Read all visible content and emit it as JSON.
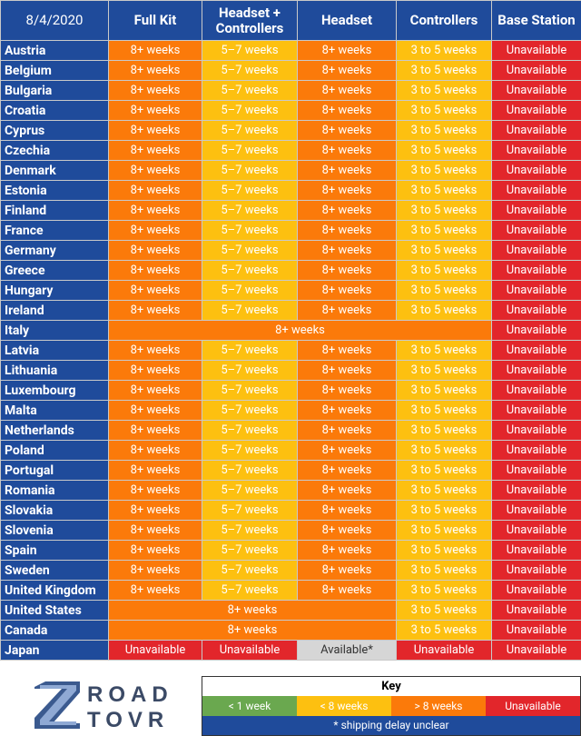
{
  "palette": {
    "blue": {
      "fill": "#1f4b9b",
      "ink": "#ffffff"
    },
    "orange": {
      "fill": "#fb7a0a",
      "ink": "#ffffff"
    },
    "yellow": {
      "fill": "#fdc010",
      "ink": "#ffffff"
    },
    "red": {
      "fill": "#e2262b",
      "ink": "#ffffff"
    },
    "grey": {
      "fill": "#d6d6d6",
      "ink": "#333333"
    },
    "green": {
      "fill": "#6aa84f",
      "ink": "#ffffff"
    }
  },
  "table": {
    "headers": [
      "8/4/2020",
      "Full Kit",
      "Headset + Controllers",
      "Headset",
      "Controllers",
      "Base Station"
    ],
    "rows": [
      {
        "country": "Austria",
        "cells": [
          {
            "text": "8+ weeks",
            "tone": "orange"
          },
          {
            "text": "5–7 weeks",
            "tone": "yellow"
          },
          {
            "text": "8+ weeks",
            "tone": "orange"
          },
          {
            "text": "3 to 5 weeks",
            "tone": "yellow"
          },
          {
            "text": "Unavailable",
            "tone": "red"
          }
        ]
      },
      {
        "country": "Belgium",
        "cells": [
          {
            "text": "8+ weeks",
            "tone": "orange"
          },
          {
            "text": "5–7 weeks",
            "tone": "yellow"
          },
          {
            "text": "8+ weeks",
            "tone": "orange"
          },
          {
            "text": "3 to 5 weeks",
            "tone": "yellow"
          },
          {
            "text": "Unavailable",
            "tone": "red"
          }
        ]
      },
      {
        "country": "Bulgaria",
        "cells": [
          {
            "text": "8+ weeks",
            "tone": "orange"
          },
          {
            "text": "5–7 weeks",
            "tone": "yellow"
          },
          {
            "text": "8+ weeks",
            "tone": "orange"
          },
          {
            "text": "3 to 5 weeks",
            "tone": "yellow"
          },
          {
            "text": "Unavailable",
            "tone": "red"
          }
        ]
      },
      {
        "country": "Croatia",
        "cells": [
          {
            "text": "8+ weeks",
            "tone": "orange"
          },
          {
            "text": "5–7 weeks",
            "tone": "yellow"
          },
          {
            "text": "8+ weeks",
            "tone": "orange"
          },
          {
            "text": "3 to 5 weeks",
            "tone": "yellow"
          },
          {
            "text": "Unavailable",
            "tone": "red"
          }
        ]
      },
      {
        "country": "Cyprus",
        "cells": [
          {
            "text": "8+ weeks",
            "tone": "orange"
          },
          {
            "text": "5–7 weeks",
            "tone": "yellow"
          },
          {
            "text": "8+ weeks",
            "tone": "orange"
          },
          {
            "text": "3 to 5 weeks",
            "tone": "yellow"
          },
          {
            "text": "Unavailable",
            "tone": "red"
          }
        ]
      },
      {
        "country": "Czechia",
        "cells": [
          {
            "text": "8+ weeks",
            "tone": "orange"
          },
          {
            "text": "5–7 weeks",
            "tone": "yellow"
          },
          {
            "text": "8+ weeks",
            "tone": "orange"
          },
          {
            "text": "3 to 5 weeks",
            "tone": "yellow"
          },
          {
            "text": "Unavailable",
            "tone": "red"
          }
        ]
      },
      {
        "country": "Denmark",
        "cells": [
          {
            "text": "8+ weeks",
            "tone": "orange"
          },
          {
            "text": "5–7 weeks",
            "tone": "yellow"
          },
          {
            "text": "8+ weeks",
            "tone": "orange"
          },
          {
            "text": "3 to 5 weeks",
            "tone": "yellow"
          },
          {
            "text": "Unavailable",
            "tone": "red"
          }
        ]
      },
      {
        "country": "Estonia",
        "cells": [
          {
            "text": "8+ weeks",
            "tone": "orange"
          },
          {
            "text": "5–7 weeks",
            "tone": "yellow"
          },
          {
            "text": "8+ weeks",
            "tone": "orange"
          },
          {
            "text": "3 to 5 weeks",
            "tone": "yellow"
          },
          {
            "text": "Unavailable",
            "tone": "red"
          }
        ]
      },
      {
        "country": "Finland",
        "cells": [
          {
            "text": "8+ weeks",
            "tone": "orange"
          },
          {
            "text": "5–7 weeks",
            "tone": "yellow"
          },
          {
            "text": "8+ weeks",
            "tone": "orange"
          },
          {
            "text": "3 to 5 weeks",
            "tone": "yellow"
          },
          {
            "text": "Unavailable",
            "tone": "red"
          }
        ]
      },
      {
        "country": "France",
        "cells": [
          {
            "text": "8+ weeks",
            "tone": "orange"
          },
          {
            "text": "5–7 weeks",
            "tone": "yellow"
          },
          {
            "text": "8+ weeks",
            "tone": "orange"
          },
          {
            "text": "3 to 5 weeks",
            "tone": "yellow"
          },
          {
            "text": "Unavailable",
            "tone": "red"
          }
        ]
      },
      {
        "country": "Germany",
        "cells": [
          {
            "text": "8+ weeks",
            "tone": "orange"
          },
          {
            "text": "5–7 weeks",
            "tone": "yellow"
          },
          {
            "text": "8+ weeks",
            "tone": "orange"
          },
          {
            "text": "3 to 5 weeks",
            "tone": "yellow"
          },
          {
            "text": "Unavailable",
            "tone": "red"
          }
        ]
      },
      {
        "country": "Greece",
        "cells": [
          {
            "text": "8+ weeks",
            "tone": "orange"
          },
          {
            "text": "5–7 weeks",
            "tone": "yellow"
          },
          {
            "text": "8+ weeks",
            "tone": "orange"
          },
          {
            "text": "3 to 5 weeks",
            "tone": "yellow"
          },
          {
            "text": "Unavailable",
            "tone": "red"
          }
        ]
      },
      {
        "country": "Hungary",
        "cells": [
          {
            "text": "8+ weeks",
            "tone": "orange"
          },
          {
            "text": "5–7 weeks",
            "tone": "yellow"
          },
          {
            "text": "8+ weeks",
            "tone": "orange"
          },
          {
            "text": "3 to 5 weeks",
            "tone": "yellow"
          },
          {
            "text": "Unavailable",
            "tone": "red"
          }
        ]
      },
      {
        "country": "Ireland",
        "cells": [
          {
            "text": "8+ weeks",
            "tone": "orange"
          },
          {
            "text": "5–7 weeks",
            "tone": "yellow"
          },
          {
            "text": "8+ weeks",
            "tone": "orange"
          },
          {
            "text": "3 to 5 weeks",
            "tone": "yellow"
          },
          {
            "text": "Unavailable",
            "tone": "red"
          }
        ]
      },
      {
        "country": "Italy",
        "cells": [
          {
            "text": "8+ weeks",
            "tone": "orange",
            "colspan": 4
          },
          {
            "text": "Unavailable",
            "tone": "red"
          }
        ]
      },
      {
        "country": "Latvia",
        "cells": [
          {
            "text": "8+ weeks",
            "tone": "orange"
          },
          {
            "text": "5–7 weeks",
            "tone": "yellow"
          },
          {
            "text": "8+ weeks",
            "tone": "orange"
          },
          {
            "text": "3 to 5 weeks",
            "tone": "yellow"
          },
          {
            "text": "Unavailable",
            "tone": "red"
          }
        ]
      },
      {
        "country": "Lithuania",
        "cells": [
          {
            "text": "8+ weeks",
            "tone": "orange"
          },
          {
            "text": "5–7 weeks",
            "tone": "yellow"
          },
          {
            "text": "8+ weeks",
            "tone": "orange"
          },
          {
            "text": "3 to 5 weeks",
            "tone": "yellow"
          },
          {
            "text": "Unavailable",
            "tone": "red"
          }
        ]
      },
      {
        "country": "Luxembourg",
        "cells": [
          {
            "text": "8+ weeks",
            "tone": "orange"
          },
          {
            "text": "5–7 weeks",
            "tone": "yellow"
          },
          {
            "text": "8+ weeks",
            "tone": "orange"
          },
          {
            "text": "3 to 5 weeks",
            "tone": "yellow"
          },
          {
            "text": "Unavailable",
            "tone": "red"
          }
        ]
      },
      {
        "country": "Malta",
        "cells": [
          {
            "text": "8+ weeks",
            "tone": "orange"
          },
          {
            "text": "5–7 weeks",
            "tone": "yellow"
          },
          {
            "text": "8+ weeks",
            "tone": "orange"
          },
          {
            "text": "3 to 5 weeks",
            "tone": "yellow"
          },
          {
            "text": "Unavailable",
            "tone": "red"
          }
        ]
      },
      {
        "country": "Netherlands",
        "cells": [
          {
            "text": "8+ weeks",
            "tone": "orange"
          },
          {
            "text": "5–7 weeks",
            "tone": "yellow"
          },
          {
            "text": "8+ weeks",
            "tone": "orange"
          },
          {
            "text": "3 to 5 weeks",
            "tone": "yellow"
          },
          {
            "text": "Unavailable",
            "tone": "red"
          }
        ]
      },
      {
        "country": "Poland",
        "cells": [
          {
            "text": "8+ weeks",
            "tone": "orange"
          },
          {
            "text": "5–7 weeks",
            "tone": "yellow"
          },
          {
            "text": "8+ weeks",
            "tone": "orange"
          },
          {
            "text": "3 to 5 weeks",
            "tone": "yellow"
          },
          {
            "text": "Unavailable",
            "tone": "red"
          }
        ]
      },
      {
        "country": "Portugal",
        "cells": [
          {
            "text": "8+ weeks",
            "tone": "orange"
          },
          {
            "text": "5–7 weeks",
            "tone": "yellow"
          },
          {
            "text": "8+ weeks",
            "tone": "orange"
          },
          {
            "text": "3 to 5 weeks",
            "tone": "yellow"
          },
          {
            "text": "Unavailable",
            "tone": "red"
          }
        ]
      },
      {
        "country": "Romania",
        "cells": [
          {
            "text": "8+ weeks",
            "tone": "orange"
          },
          {
            "text": "5–7 weeks",
            "tone": "yellow"
          },
          {
            "text": "8+ weeks",
            "tone": "orange"
          },
          {
            "text": "3 to 5 weeks",
            "tone": "yellow"
          },
          {
            "text": "Unavailable",
            "tone": "red"
          }
        ]
      },
      {
        "country": "Slovakia",
        "cells": [
          {
            "text": "8+ weeks",
            "tone": "orange"
          },
          {
            "text": "5–7 weeks",
            "tone": "yellow"
          },
          {
            "text": "8+ weeks",
            "tone": "orange"
          },
          {
            "text": "3 to 5 weeks",
            "tone": "yellow"
          },
          {
            "text": "Unavailable",
            "tone": "red"
          }
        ]
      },
      {
        "country": "Slovenia",
        "cells": [
          {
            "text": "8+ weeks",
            "tone": "orange"
          },
          {
            "text": "5–7 weeks",
            "tone": "yellow"
          },
          {
            "text": "8+ weeks",
            "tone": "orange"
          },
          {
            "text": "3 to 5 weeks",
            "tone": "yellow"
          },
          {
            "text": "Unavailable",
            "tone": "red"
          }
        ]
      },
      {
        "country": "Spain",
        "cells": [
          {
            "text": "8+ weeks",
            "tone": "orange"
          },
          {
            "text": "5–7 weeks",
            "tone": "yellow"
          },
          {
            "text": "8+ weeks",
            "tone": "orange"
          },
          {
            "text": "3 to 5 weeks",
            "tone": "yellow"
          },
          {
            "text": "Unavailable",
            "tone": "red"
          }
        ]
      },
      {
        "country": "Sweden",
        "cells": [
          {
            "text": "8+ weeks",
            "tone": "orange"
          },
          {
            "text": "5–7 weeks",
            "tone": "yellow"
          },
          {
            "text": "8+ weeks",
            "tone": "orange"
          },
          {
            "text": "3 to 5 weeks",
            "tone": "yellow"
          },
          {
            "text": "Unavailable",
            "tone": "red"
          }
        ]
      },
      {
        "country": "United Kingdom",
        "cells": [
          {
            "text": "8+ weeks",
            "tone": "orange"
          },
          {
            "text": "5–7 weeks",
            "tone": "yellow"
          },
          {
            "text": "8+ weeks",
            "tone": "orange"
          },
          {
            "text": "3 to 5 weeks",
            "tone": "yellow"
          },
          {
            "text": "Unavailable",
            "tone": "red"
          }
        ]
      },
      {
        "country": "United States",
        "cells": [
          {
            "text": "8+ weeks",
            "tone": "orange",
            "colspan": 3
          },
          {
            "text": "3 to 5 weeks",
            "tone": "yellow"
          },
          {
            "text": "Unavailable",
            "tone": "red"
          }
        ]
      },
      {
        "country": "Canada",
        "cells": [
          {
            "text": "8+ weeks",
            "tone": "orange",
            "colspan": 3
          },
          {
            "text": "3 to 5 weeks",
            "tone": "yellow"
          },
          {
            "text": "Unavailable",
            "tone": "red"
          }
        ]
      },
      {
        "country": "Japan",
        "cells": [
          {
            "text": "Unavailable",
            "tone": "red"
          },
          {
            "text": "Unavailable",
            "tone": "red"
          },
          {
            "text": "Available*",
            "tone": "grey"
          },
          {
            "text": "Unavailable",
            "tone": "red"
          },
          {
            "text": "Unavailable",
            "tone": "red"
          }
        ]
      }
    ]
  },
  "logo": {
    "top": "ROAD",
    "bottom": "TOVR"
  },
  "key": {
    "title": "Key",
    "entries": [
      {
        "text": "< 1 week",
        "tone": "green"
      },
      {
        "text": "< 8 weeks",
        "tone": "yellow"
      },
      {
        "text": "> 8 weeks",
        "tone": "orange"
      },
      {
        "text": "Unavailable",
        "tone": "red"
      }
    ],
    "note": "* shipping delay unclear"
  }
}
